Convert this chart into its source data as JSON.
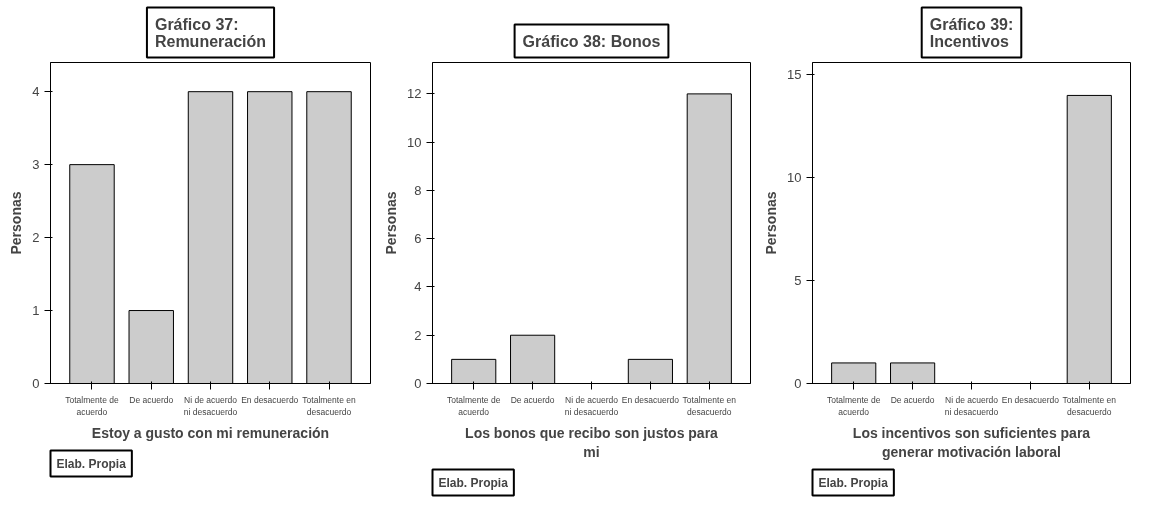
{
  "chart_data": [
    {
      "type": "bar",
      "title": "Gráfico 37: Remuneración",
      "xlabel": "Estoy a gusto con mi remuneración",
      "ylabel": "Personas",
      "categories": [
        "Totalmente de acuerdo",
        "De acuerdo",
        "Ni de acuerdo ni desacuerdo",
        "En desacuerdo",
        "Totalmente en desacuerdo"
      ],
      "values": [
        3,
        1,
        4,
        4,
        4
      ],
      "color": "#cccccc",
      "ylim": [
        0,
        4.4
      ],
      "yticks": [
        0,
        1,
        2,
        3,
        4
      ],
      "grid": false,
      "annotations": [
        "Elab. Propia"
      ]
    },
    {
      "type": "bar",
      "title": "Gráfico 38: Bonos",
      "xlabel": "Los bonos que recibo son justos para mi",
      "ylabel": "Personas",
      "categories": [
        "Totalmente de acuerdo",
        "De acuerdo",
        "Ni de acuerdo ni desacuerdo",
        "En desacuerdo",
        "Totalmente en desacuerdo"
      ],
      "values": [
        1,
        2,
        0,
        1,
        12
      ],
      "color": "#cccccc",
      "ylim": [
        0,
        13.3
      ],
      "yticks": [
        0,
        2,
        4,
        6,
        8,
        10,
        12
      ],
      "grid": false,
      "annotations": [
        "Elab. Propia"
      ]
    },
    {
      "type": "bar",
      "title": "Gráfico 39: Incentivos",
      "xlabel": "Los incentivos son suficientes para generar motivación laboral",
      "ylabel": "Personas",
      "categories": [
        "Totalmente de acuerdo",
        "De acuerdo",
        "Ni de acuerdo ni desacuerdo",
        "En desacuerdo",
        "Totalmente en desacuerdo"
      ],
      "values": [
        1,
        1,
        0,
        0,
        14
      ],
      "color": "#cccccc",
      "ylim": [
        0,
        15.6
      ],
      "yticks": [
        0,
        5,
        10,
        15
      ],
      "grid": false,
      "annotations": [
        "Elab. Propia"
      ]
    }
  ]
}
